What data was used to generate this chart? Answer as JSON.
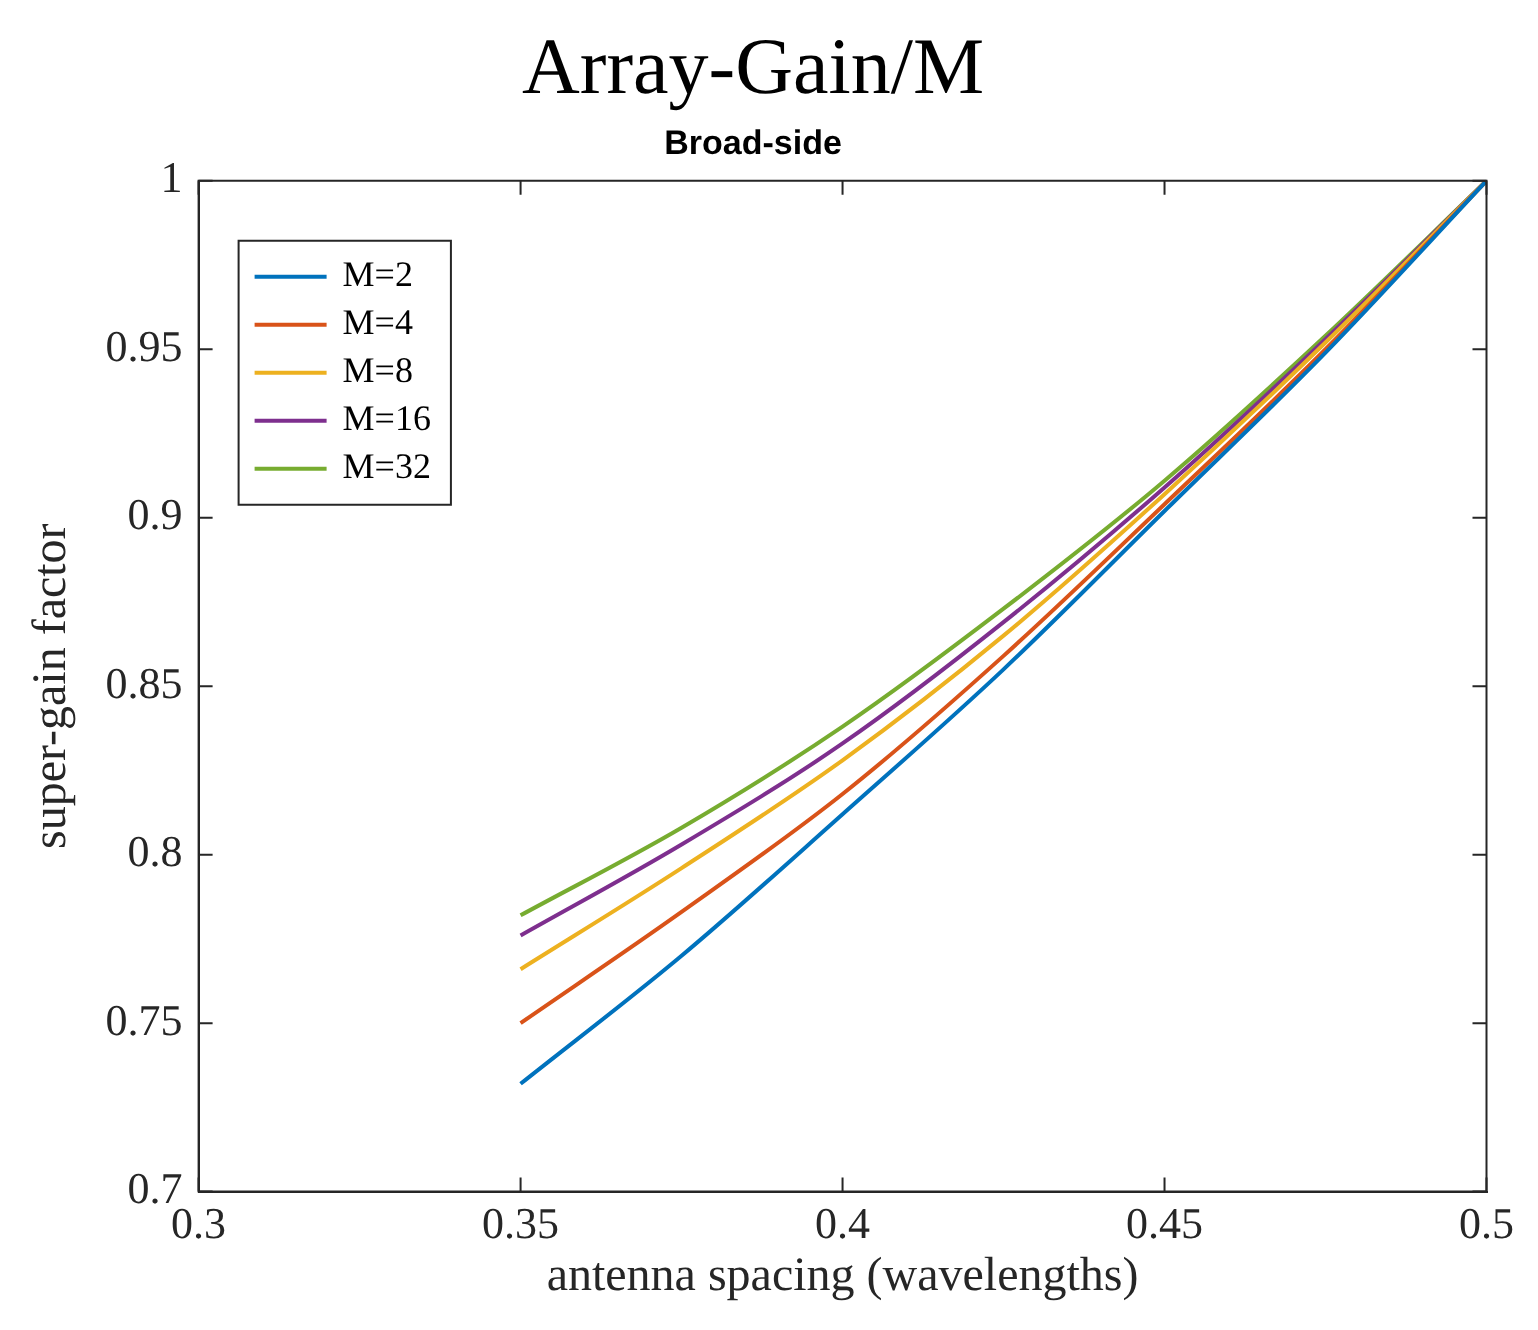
{
  "chart_data": {
    "type": "line",
    "title": "Array-Gain/M",
    "subtitle": "Broad-side",
    "xlabel": "antenna spacing (wavelengths)",
    "ylabel": "super-gain factor",
    "x": [
      0.35,
      0.375,
      0.4,
      0.425,
      0.45,
      0.475,
      0.5
    ],
    "series": [
      {
        "name": "M=2",
        "color": "#0072bd",
        "values": [
          0.732,
          0.77,
          0.812,
          0.855,
          0.902,
          0.949,
          1
        ]
      },
      {
        "name": "M=4",
        "color": "#d95319",
        "values": [
          0.75,
          0.783,
          0.818,
          0.859,
          0.904,
          0.95,
          1
        ]
      },
      {
        "name": "M=8",
        "color": "#edb120",
        "values": [
          0.766,
          0.796,
          0.828,
          0.865,
          0.907,
          0.952,
          1
        ]
      },
      {
        "name": "M=16",
        "color": "#7e2f8e",
        "values": [
          0.776,
          0.803,
          0.833,
          0.869,
          0.909,
          0.953,
          1
        ]
      },
      {
        "name": "M=32",
        "color": "#77ac30",
        "values": [
          0.782,
          0.808,
          0.838,
          0.873,
          0.911,
          0.954,
          1
        ]
      }
    ],
    "xlim": [
      0.3,
      0.5
    ],
    "xticks": [
      0.3,
      0.35,
      0.4,
      0.45,
      0.5
    ],
    "ylim": [
      0.7,
      1
    ],
    "yticks": [
      0.7,
      0.75,
      0.8,
      0.85,
      0.9,
      0.95,
      1
    ],
    "grid": false,
    "legend": "top left",
    "marker": "none",
    "line_style": "solid"
  }
}
